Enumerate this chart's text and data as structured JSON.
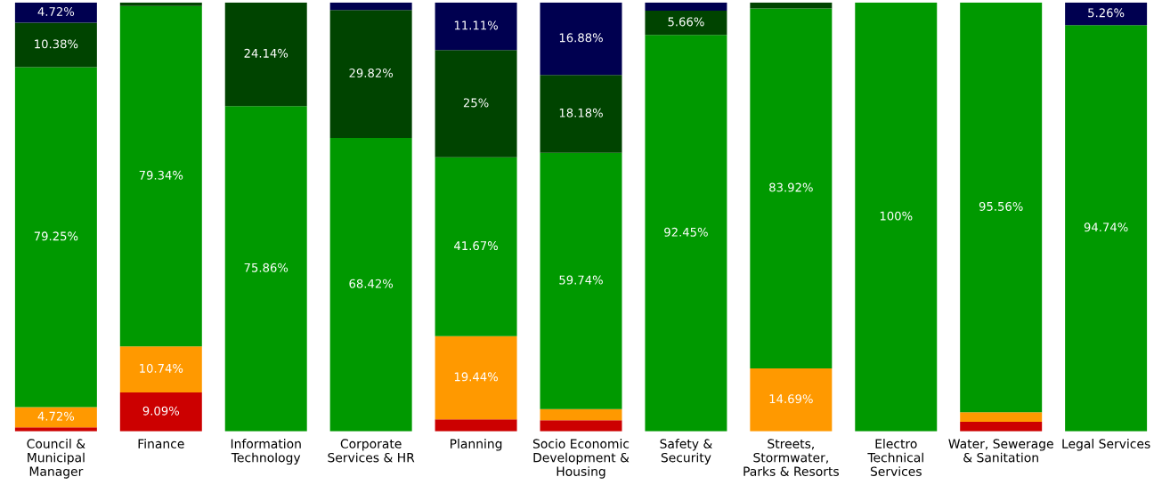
{
  "chart_data": {
    "type": "bar",
    "stacked": true,
    "tick_labels": "x",
    "categories": [
      "Council & Municipal Manager",
      "Finance",
      "Information Technology",
      "Corporate Services & HR",
      "Planning",
      "Socio Economic Development & Housing",
      "Safety & Security",
      "Streets, Stormwater, Parks & Resorts",
      "Electro Technical Services",
      "Water, Sewerage & Sanitation",
      "Legal Services"
    ],
    "series": [
      {
        "color": "#cc0000",
        "values": [
          0.94,
          9.09,
          0,
          0,
          2.78,
          2.6,
          0,
          0,
          0,
          2.22,
          0
        ],
        "value_labels": [
          null,
          "9.09%",
          null,
          null,
          null,
          null,
          null,
          null,
          null,
          null,
          null
        ]
      },
      {
        "color": "#ff9900",
        "values": [
          4.72,
          10.74,
          0,
          0,
          19.44,
          2.6,
          0,
          14.69,
          0,
          2.22,
          0
        ],
        "value_labels": [
          "4.72%",
          "10.74%",
          null,
          null,
          "19.44%",
          null,
          null,
          "14.69%",
          null,
          null,
          null
        ]
      },
      {
        "color": "#009900",
        "values": [
          79.25,
          79.34,
          75.86,
          68.42,
          41.67,
          59.74,
          92.45,
          83.92,
          100,
          95.56,
          94.74
        ],
        "value_labels": [
          "79.25%",
          "79.34%",
          "75.86%",
          "68.42%",
          "41.67%",
          "59.74%",
          "92.45%",
          "83.92%",
          "100%",
          "95.56%",
          "94.74%"
        ]
      },
      {
        "color": "#004400",
        "values": [
          10.38,
          0.83,
          24.14,
          29.82,
          25,
          18.18,
          5.66,
          1.4,
          0,
          0,
          0
        ],
        "value_labels": [
          "10.38%",
          null,
          "24.14%",
          "29.82%",
          "25%",
          "18.18%",
          "5.66%",
          null,
          null,
          null,
          null
        ]
      },
      {
        "color": "#000050",
        "values": [
          4.72,
          0,
          0,
          1.75,
          11.11,
          16.88,
          1.89,
          0,
          0,
          0,
          5.26
        ],
        "value_labels": [
          "4.72%",
          null,
          null,
          null,
          "11.11%",
          "16.88%",
          null,
          null,
          null,
          null,
          "5.26%"
        ]
      }
    ]
  }
}
